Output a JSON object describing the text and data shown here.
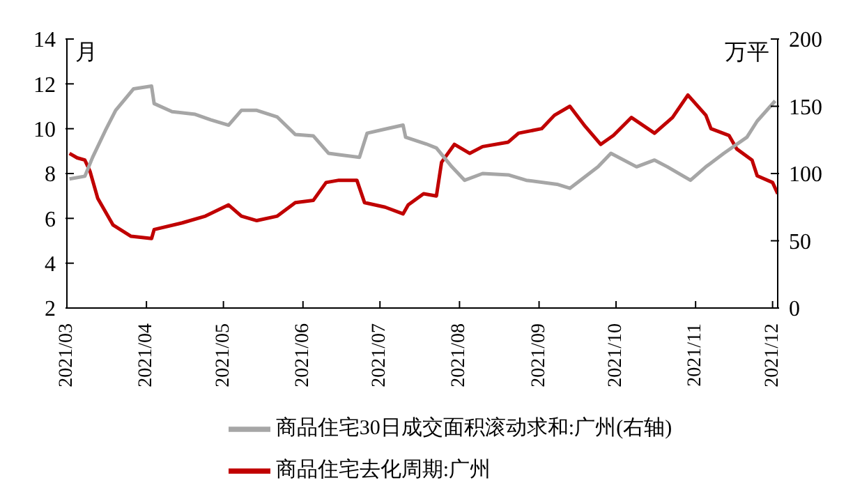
{
  "chart_data": {
    "type": "line",
    "ylabel": "月",
    "y2label": "万平",
    "legend": "bottom",
    "grid": false,
    "marker": "none",
    "line_style": "solid",
    "xlim": [
      "2021-03-01",
      "2021-12-03"
    ],
    "xticks": [
      {
        "value": "2021-03-01",
        "label": "2021/03"
      },
      {
        "value": "2021-04-01",
        "label": "2021/04"
      },
      {
        "value": "2021-05-01",
        "label": "2021/05"
      },
      {
        "value": "2021-06-01",
        "label": "2021/06"
      },
      {
        "value": "2021-07-01",
        "label": "2021/07"
      },
      {
        "value": "2021-08-01",
        "label": "2021/08"
      },
      {
        "value": "2021-09-01",
        "label": "2021/09"
      },
      {
        "value": "2021-10-01",
        "label": "2021/10"
      },
      {
        "value": "2021-11-01",
        "label": "2021/11"
      },
      {
        "value": "2021-12-01",
        "label": "2021/12"
      }
    ],
    "ylim": [
      2,
      14
    ],
    "yticks": [
      2,
      4,
      6,
      8,
      10,
      12,
      14
    ],
    "y2lim": [
      0,
      200
    ],
    "y2ticks": [
      0,
      50,
      100,
      150,
      200
    ],
    "series": [
      {
        "name": "商品住宅去化周期:广州",
        "color": "#c00000",
        "x": [
          "2021-03-02",
          "2021-03-05",
          "2021-03-08",
          "2021-03-10",
          "2021-03-13",
          "2021-03-19",
          "2021-03-26",
          "2021-04-03",
          "2021-04-04",
          "2021-04-15",
          "2021-04-24",
          "2021-05-03",
          "2021-05-08",
          "2021-05-14",
          "2021-05-22",
          "2021-05-29",
          "2021-06-05",
          "2021-06-10",
          "2021-06-15",
          "2021-06-22",
          "2021-06-25",
          "2021-07-03",
          "2021-07-10",
          "2021-07-12",
          "2021-07-18",
          "2021-07-23",
          "2021-07-25",
          "2021-07-30",
          "2021-08-05",
          "2021-08-10",
          "2021-08-20",
          "2021-08-24",
          "2021-09-02",
          "2021-09-07",
          "2021-09-13",
          "2021-09-19",
          "2021-09-25",
          "2021-09-30",
          "2021-10-07",
          "2021-10-16",
          "2021-10-23",
          "2021-10-29",
          "2021-11-05",
          "2021-11-07",
          "2021-11-14",
          "2021-11-17",
          "2021-11-23",
          "2021-11-25",
          "2021-12-01",
          "2021-12-03"
        ],
        "values": [
          8.9,
          8.7,
          8.6,
          8.1,
          6.9,
          5.7,
          5.2,
          5.1,
          5.5,
          5.8,
          6.1,
          6.6,
          6.1,
          5.9,
          6.1,
          6.7,
          6.8,
          7.6,
          7.7,
          7.7,
          6.7,
          6.5,
          6.2,
          6.6,
          7.1,
          7.0,
          8.5,
          9.3,
          8.9,
          9.2,
          9.4,
          9.8,
          10.0,
          10.6,
          11.0,
          10.1,
          9.3,
          9.7,
          10.5,
          9.8,
          10.5,
          11.5,
          10.6,
          10.0,
          9.7,
          9.1,
          8.6,
          7.9,
          7.6,
          7.1
        ]
      },
      {
        "name": "商品住宅30日成交面积滚动求和:广州(右轴)",
        "color": "#a6a6a6",
        "axis": "y2",
        "x": [
          "2021-03-02",
          "2021-03-08",
          "2021-03-11",
          "2021-03-16",
          "2021-03-20",
          "2021-03-27",
          "2021-04-03",
          "2021-04-04",
          "2021-04-11",
          "2021-04-20",
          "2021-04-26",
          "2021-05-03",
          "2021-05-08",
          "2021-05-14",
          "2021-05-22",
          "2021-05-29",
          "2021-06-05",
          "2021-06-11",
          "2021-06-15",
          "2021-06-23",
          "2021-06-26",
          "2021-07-03",
          "2021-07-10",
          "2021-07-11",
          "2021-07-19",
          "2021-07-23",
          "2021-07-29",
          "2021-08-03",
          "2021-08-10",
          "2021-08-20",
          "2021-08-27",
          "2021-09-08",
          "2021-09-13",
          "2021-09-24",
          "2021-09-29",
          "2021-10-09",
          "2021-10-16",
          "2021-10-21",
          "2021-10-30",
          "2021-11-05",
          "2021-11-12",
          "2021-11-21",
          "2021-11-25",
          "2021-12-02"
        ],
        "values": [
          96,
          98,
          112,
          132,
          147,
          163,
          165,
          152,
          146,
          144,
          140,
          136,
          147,
          147,
          142,
          129,
          128,
          115,
          114,
          112,
          130,
          133,
          136,
          127,
          122,
          119,
          105,
          95,
          100,
          99,
          95,
          92,
          89,
          105,
          115,
          105,
          110,
          105,
          95,
          105,
          115,
          127,
          139,
          154
        ]
      }
    ]
  }
}
